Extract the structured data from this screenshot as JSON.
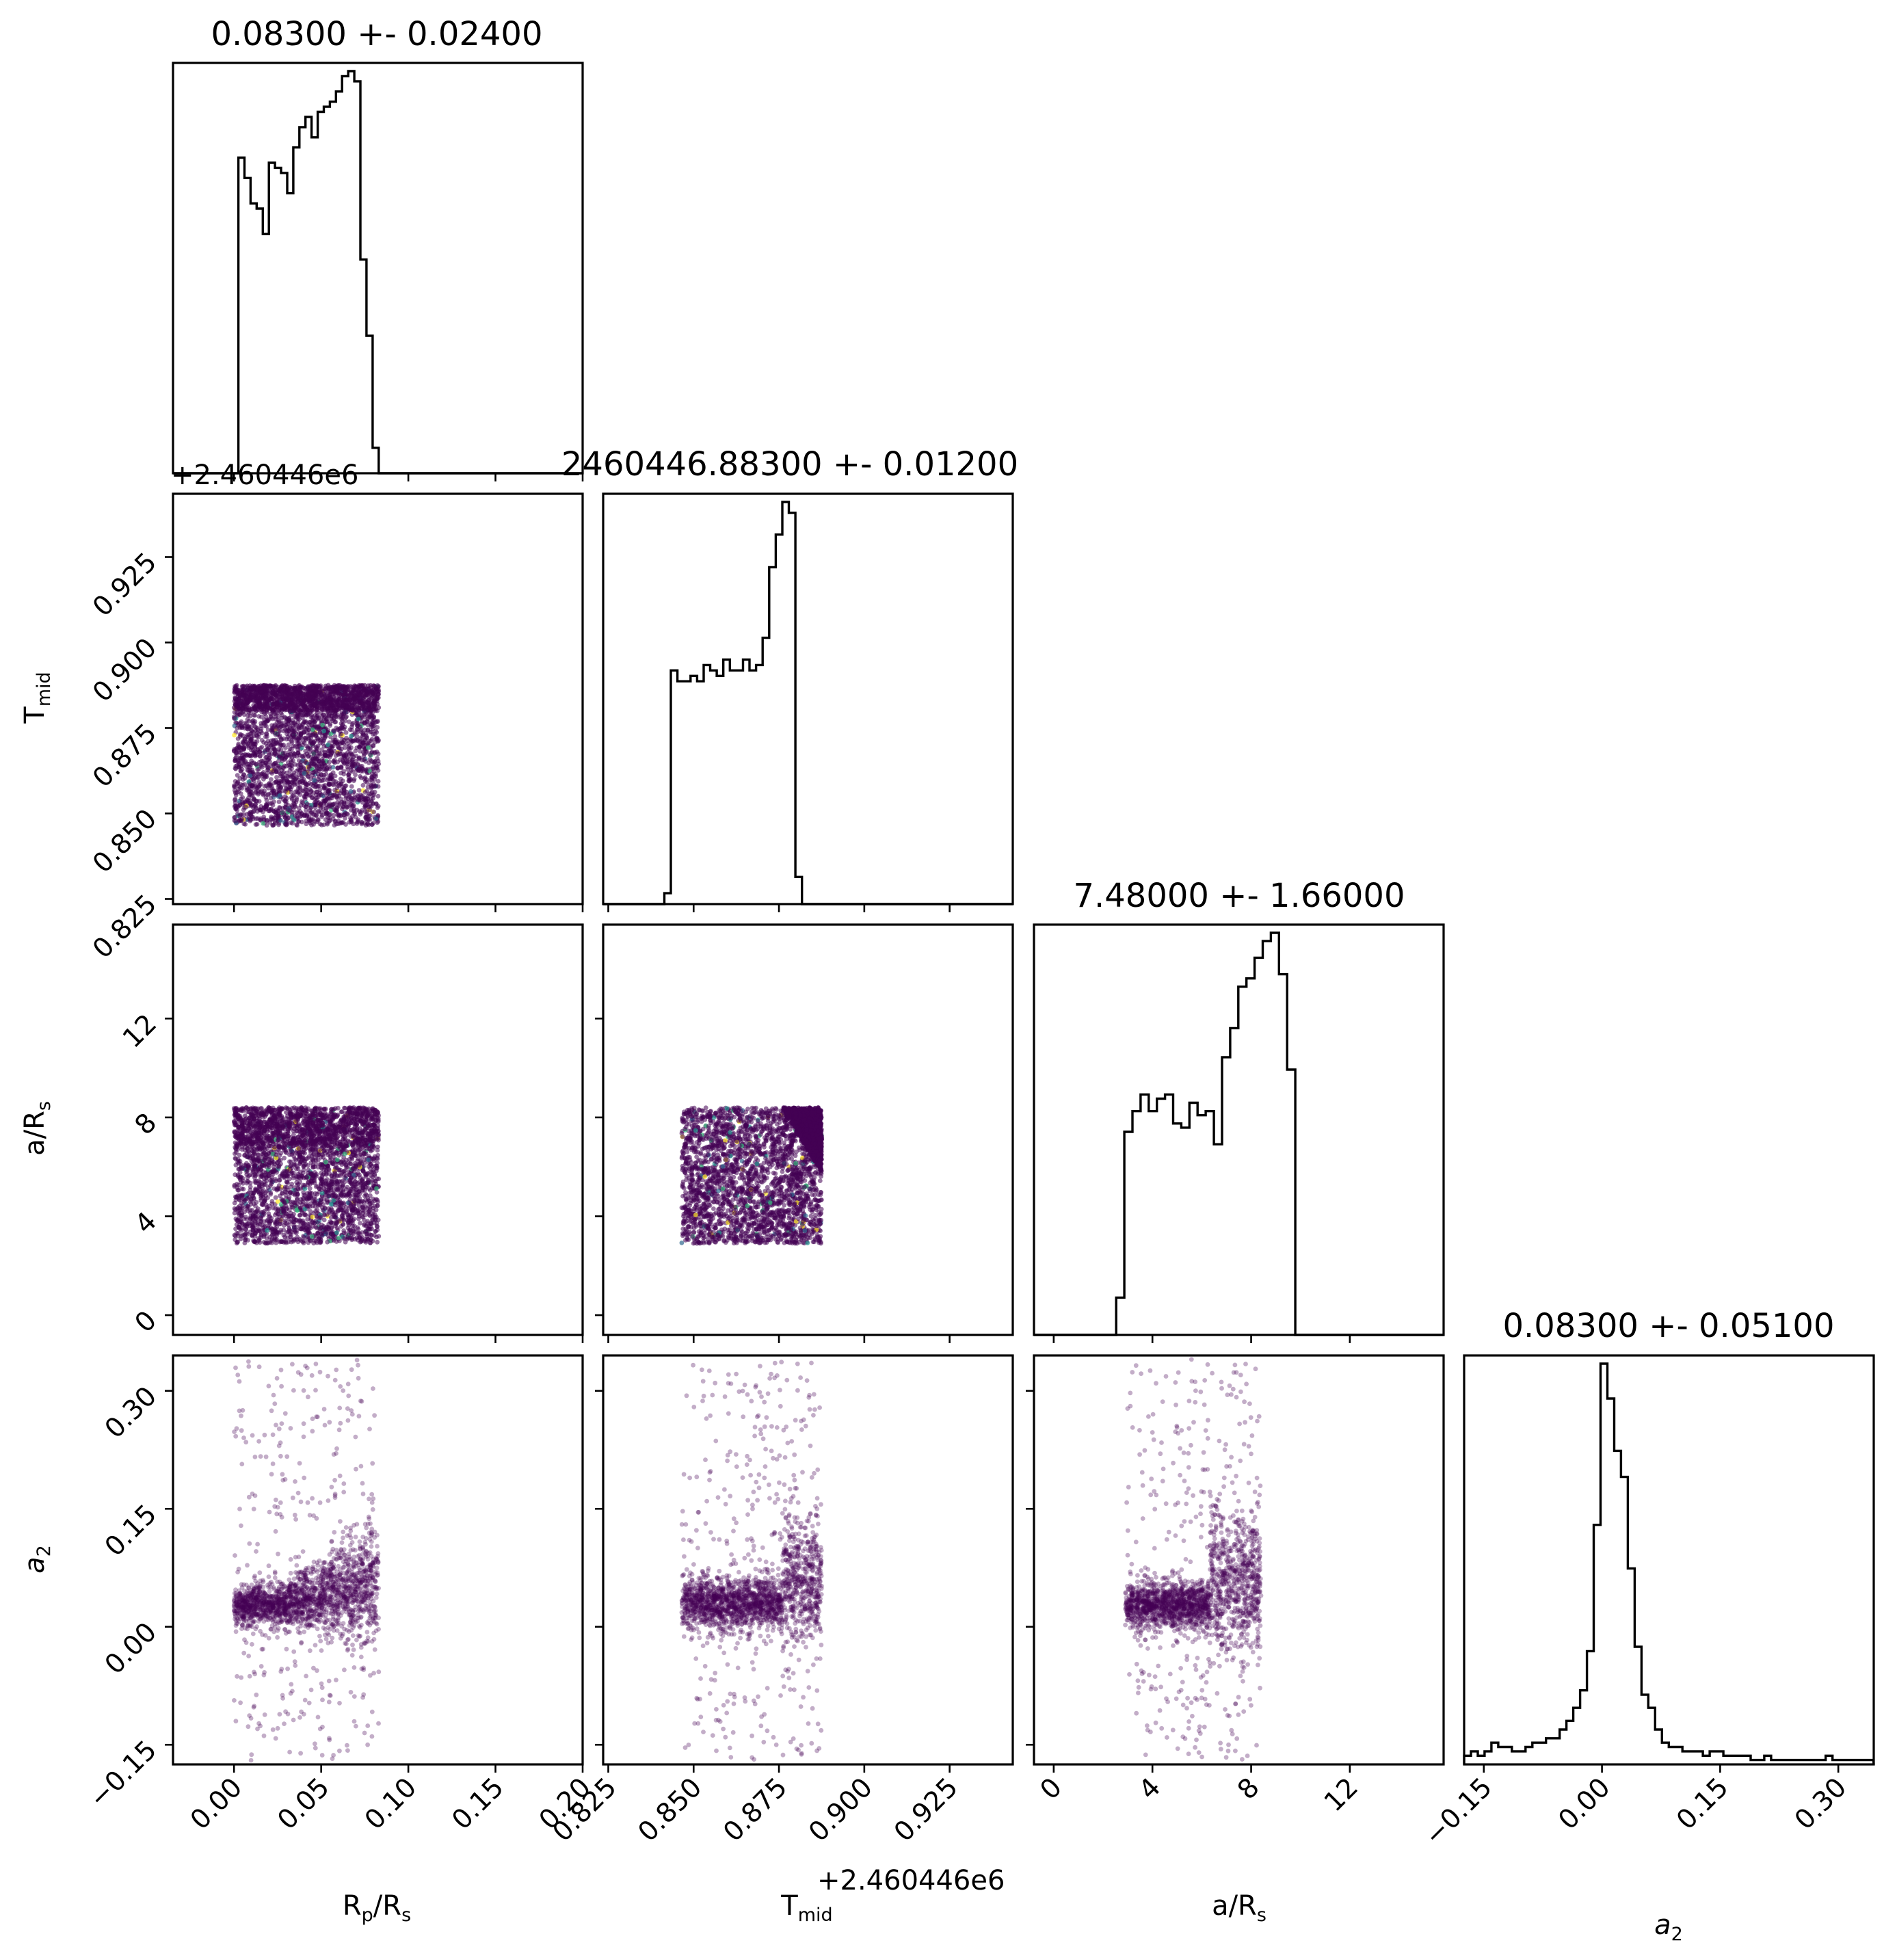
{
  "colors": {
    "axes": "#000000",
    "point": "#440154",
    "point_alt": [
      "#31688e",
      "#21918c",
      "#35b779",
      "#fde725"
    ],
    "background": "#ffffff"
  },
  "chart_data": {
    "type": "corner",
    "parameters": [
      {
        "key": "rp",
        "label": "R",
        "label_sub": "p",
        "label_tail": "/R",
        "label_sub2": "s",
        "range": [
          -0.035,
          0.2
        ],
        "ticks": [
          0.0,
          0.05,
          0.1,
          0.15,
          0.2
        ],
        "tick_labels": [
          "0.00",
          "0.05",
          "0.10",
          "0.15",
          "0.20"
        ],
        "title": "0.08300 +- 0.02400",
        "sample_range": [
          0.0,
          0.083
        ]
      },
      {
        "key": "tmid",
        "label": "T",
        "label_sub": "mid",
        "label_tail": "",
        "label_sub2": "",
        "range": [
          0.8235,
          0.9435
        ],
        "ticks": [
          0.825,
          0.85,
          0.875,
          0.9,
          0.925
        ],
        "tick_labels": [
          "0.825",
          "0.850",
          "0.875",
          "0.900",
          "0.925"
        ],
        "offset": "+2.460446e6",
        "title": "2460446.88300 +- 0.01200",
        "sample_range": [
          0.8465,
          0.8875
        ]
      },
      {
        "key": "ars",
        "label": "a/R",
        "label_sub": "s",
        "label_tail": "",
        "label_sub2": "",
        "range": [
          -0.8,
          15.8
        ],
        "ticks": [
          0,
          4,
          8,
          12
        ],
        "tick_labels": [
          "0",
          "4",
          "8",
          "12"
        ],
        "title": "7.48000 +- 1.66000",
        "sample_range": [
          2.9,
          8.4
        ]
      },
      {
        "key": "a2",
        "label": "a",
        "label_sub": "2",
        "label_tail": "",
        "label_sub2": "",
        "range": [
          -0.175,
          0.345
        ],
        "ticks": [
          -0.15,
          0.0,
          0.15,
          0.3
        ],
        "tick_labels": [
          "−0.15",
          "0.00",
          "0.15",
          "0.30"
        ],
        "title": "0.08300 +- 0.05100"
      }
    ],
    "histograms": {
      "rp": {
        "bin_edges_start": -0.001,
        "bin_width": 0.0035,
        "counts": [
          0,
          0.62,
          0.58,
          0.53,
          0.52,
          0.47,
          0.61,
          0.6,
          0.59,
          0.55,
          0.64,
          0.68,
          0.7,
          0.66,
          0.71,
          0.72,
          0.73,
          0.75,
          0.78,
          0.79,
          0.77,
          0.42,
          0.27,
          0.05,
          0
        ]
      },
      "tmid": {
        "bin_edges_start": 0.8395,
        "bin_width": 0.00192,
        "counts": [
          0,
          0.02,
          0.43,
          0.41,
          0.41,
          0.42,
          0.41,
          0.44,
          0.43,
          0.42,
          0.45,
          0.43,
          0.43,
          0.45,
          0.43,
          0.44,
          0.49,
          0.62,
          0.68,
          0.74,
          0.72,
          0.05,
          0
        ]
      },
      "ars": {
        "bin_edges_start": 2.2,
        "bin_width": 0.33,
        "counts": [
          0,
          0.09,
          0.49,
          0.54,
          0.58,
          0.54,
          0.57,
          0.58,
          0.51,
          0.5,
          0.56,
          0.53,
          0.54,
          0.46,
          0.67,
          0.74,
          0.84,
          0.86,
          0.91,
          0.95,
          0.97,
          0.87,
          0.64,
          0
        ]
      },
      "a2": {
        "bin_edges_start": -0.175,
        "bin_width": 0.00866,
        "counts": [
          0.02,
          0.03,
          0.02,
          0.03,
          0.05,
          0.04,
          0.04,
          0.03,
          0.03,
          0.04,
          0.05,
          0.05,
          0.06,
          0.06,
          0.08,
          0.1,
          0.13,
          0.17,
          0.26,
          0.55,
          0.92,
          0.84,
          0.72,
          0.66,
          0.45,
          0.27,
          0.16,
          0.13,
          0.08,
          0.05,
          0.04,
          0.04,
          0.03,
          0.03,
          0.03,
          0.02,
          0.03,
          0.03,
          0.02,
          0.02,
          0.02,
          0.02,
          0.01,
          0.01,
          0.02,
          0.01,
          0.01,
          0.01,
          0.01,
          0.01,
          0.01,
          0.01,
          0.01,
          0.02,
          0.01,
          0.01,
          0.01,
          0.01,
          0.01,
          0.01
        ]
      }
    }
  }
}
